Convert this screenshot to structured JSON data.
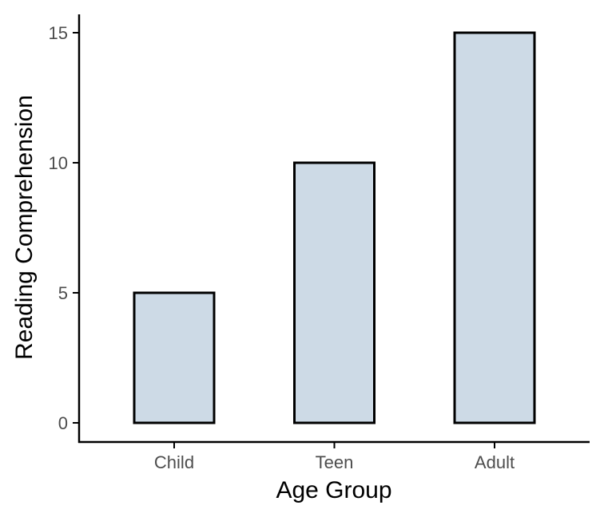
{
  "chart_data": {
    "type": "bar",
    "title": "",
    "xlabel": "Age Group",
    "ylabel": "Reading Comprehension",
    "categories": [
      "Child",
      "Teen",
      "Adult"
    ],
    "values": [
      5,
      10,
      15
    ],
    "ylim": [
      0,
      15
    ],
    "yticks": [
      "0",
      "5",
      "10",
      "15"
    ],
    "grid": false,
    "legend": "none",
    "colors": {
      "bar_fill": "#cddae6",
      "bar_stroke": "#000000",
      "axis": "#000000",
      "tick_text": "#4d4d4d"
    }
  }
}
